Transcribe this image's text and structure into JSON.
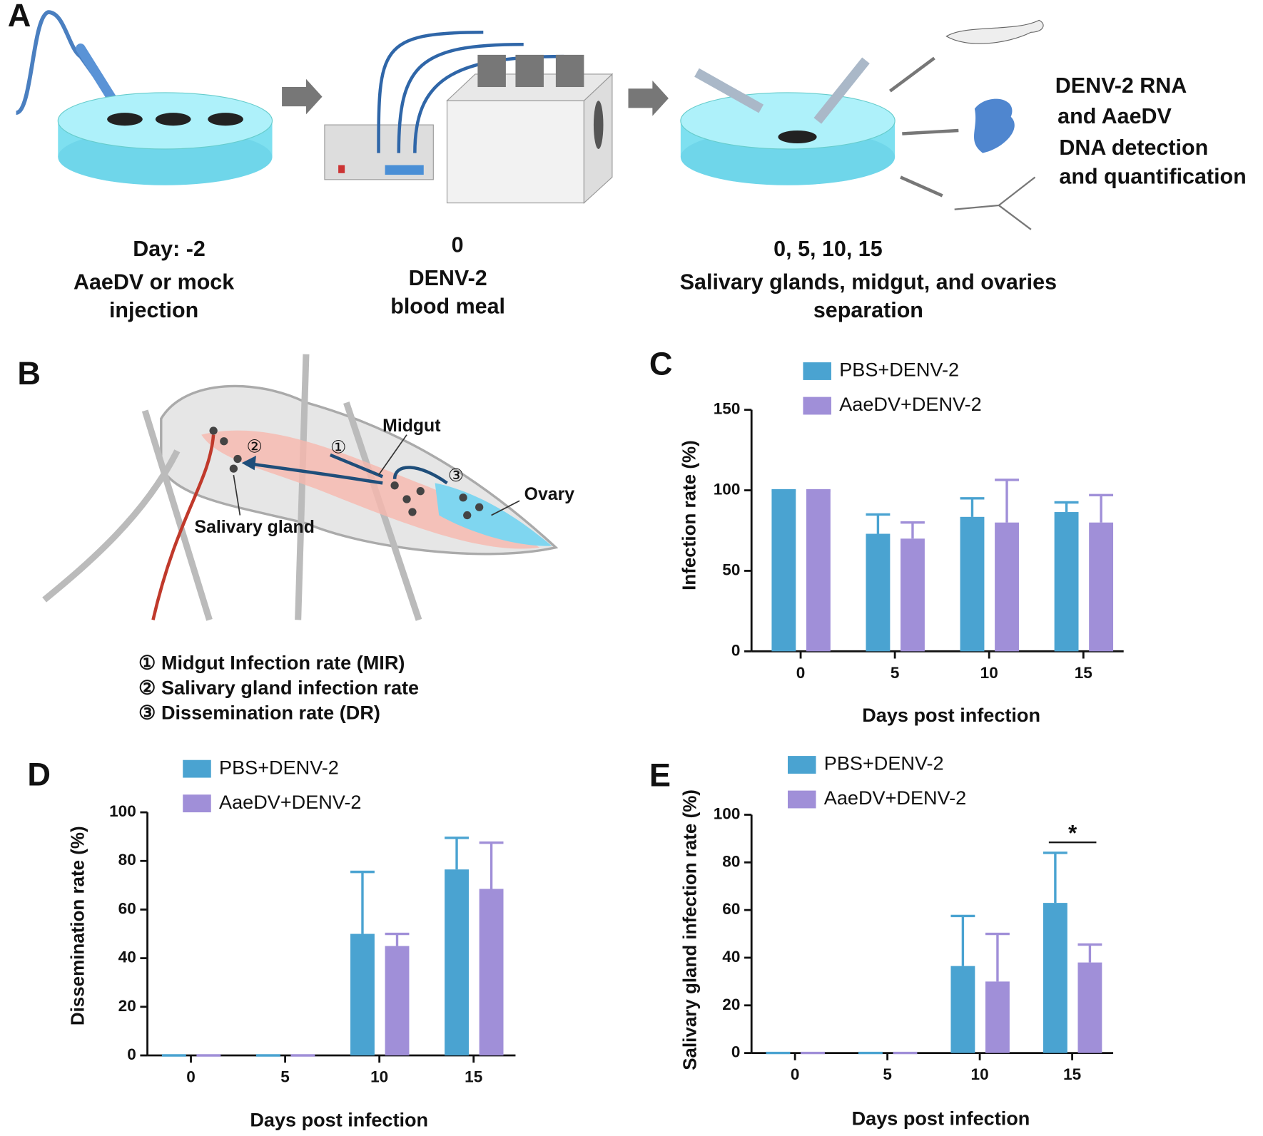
{
  "panel_a": {
    "label": "A",
    "steps": [
      {
        "day": "Day: -2",
        "text": [
          "AaeDV or mock",
          "injection"
        ]
      },
      {
        "day": "0",
        "text": [
          "DENV-2",
          "blood meal"
        ]
      },
      {
        "day": "0, 5, 10, 15",
        "text": [
          "Salivary glands, midgut, and ovaries",
          "separation"
        ]
      }
    ],
    "detection": [
      "DENV-2 RNA",
      "and  AaeDV",
      "DNA detection",
      "and quantification"
    ]
  },
  "panel_b": {
    "label": "B",
    "labels": [
      "Midgut",
      "Ovary",
      "Salivary gland"
    ],
    "markers": [
      "①",
      "②",
      "③"
    ],
    "legend": [
      "① Midgut Infection rate (MIR)",
      "② Salivary gland infection rate",
      "③ Dissemination rate (DR)"
    ]
  },
  "chart_data": [
    {
      "label": "C",
      "type": "bar",
      "y_label": "Infection rate (%)",
      "x_label": "Days post infection",
      "categories": [
        "0",
        "5",
        "10",
        "15"
      ],
      "ylim": [
        0,
        150
      ],
      "yticks": [
        0,
        50,
        100,
        150
      ],
      "series": [
        {
          "name": "PBS+DENV-2",
          "color": "#4aa3d1",
          "values": [
            100,
            73,
            83.5,
            86.5
          ],
          "errors": [
            0,
            12,
            11.5,
            6
          ]
        },
        {
          "name": "AaeDV+DENV-2",
          "color": "#a08fd8",
          "values": [
            100,
            70,
            80,
            80
          ],
          "errors": [
            0,
            10,
            26.5,
            17
          ]
        }
      ]
    },
    {
      "label": "D",
      "type": "bar",
      "y_label": "Dissemination rate (%)",
      "x_label": "Days post infection",
      "categories": [
        "0",
        "5",
        "10",
        "15"
      ],
      "ylim": [
        0,
        100
      ],
      "yticks": [
        0,
        20,
        40,
        60,
        80,
        100
      ],
      "series": [
        {
          "name": "PBS+DENV-2",
          "color": "#4aa3d1",
          "values": [
            0,
            0,
            50,
            76.5
          ],
          "errors": [
            0,
            0,
            25.5,
            13
          ]
        },
        {
          "name": "AaeDV+DENV-2",
          "color": "#a08fd8",
          "values": [
            0,
            0,
            45,
            68.5
          ],
          "errors": [
            0,
            0,
            5,
            19
          ]
        }
      ]
    },
    {
      "label": "E",
      "type": "bar",
      "y_label": "Salivary gland infection rate (%)",
      "x_label": "Days post infection",
      "categories": [
        "0",
        "5",
        "10",
        "15"
      ],
      "ylim": [
        0,
        100
      ],
      "yticks": [
        0,
        20,
        40,
        60,
        80,
        100
      ],
      "series": [
        {
          "name": "PBS+DENV-2",
          "color": "#4aa3d1",
          "values": [
            0,
            0,
            36.5,
            63
          ],
          "errors": [
            0,
            0,
            21,
            21
          ]
        },
        {
          "name": "AaeDV+DENV-2",
          "color": "#a08fd8",
          "values": [
            0,
            0,
            30,
            38
          ],
          "errors": [
            0,
            0,
            20,
            7.5
          ]
        }
      ],
      "significance": "*"
    }
  ]
}
